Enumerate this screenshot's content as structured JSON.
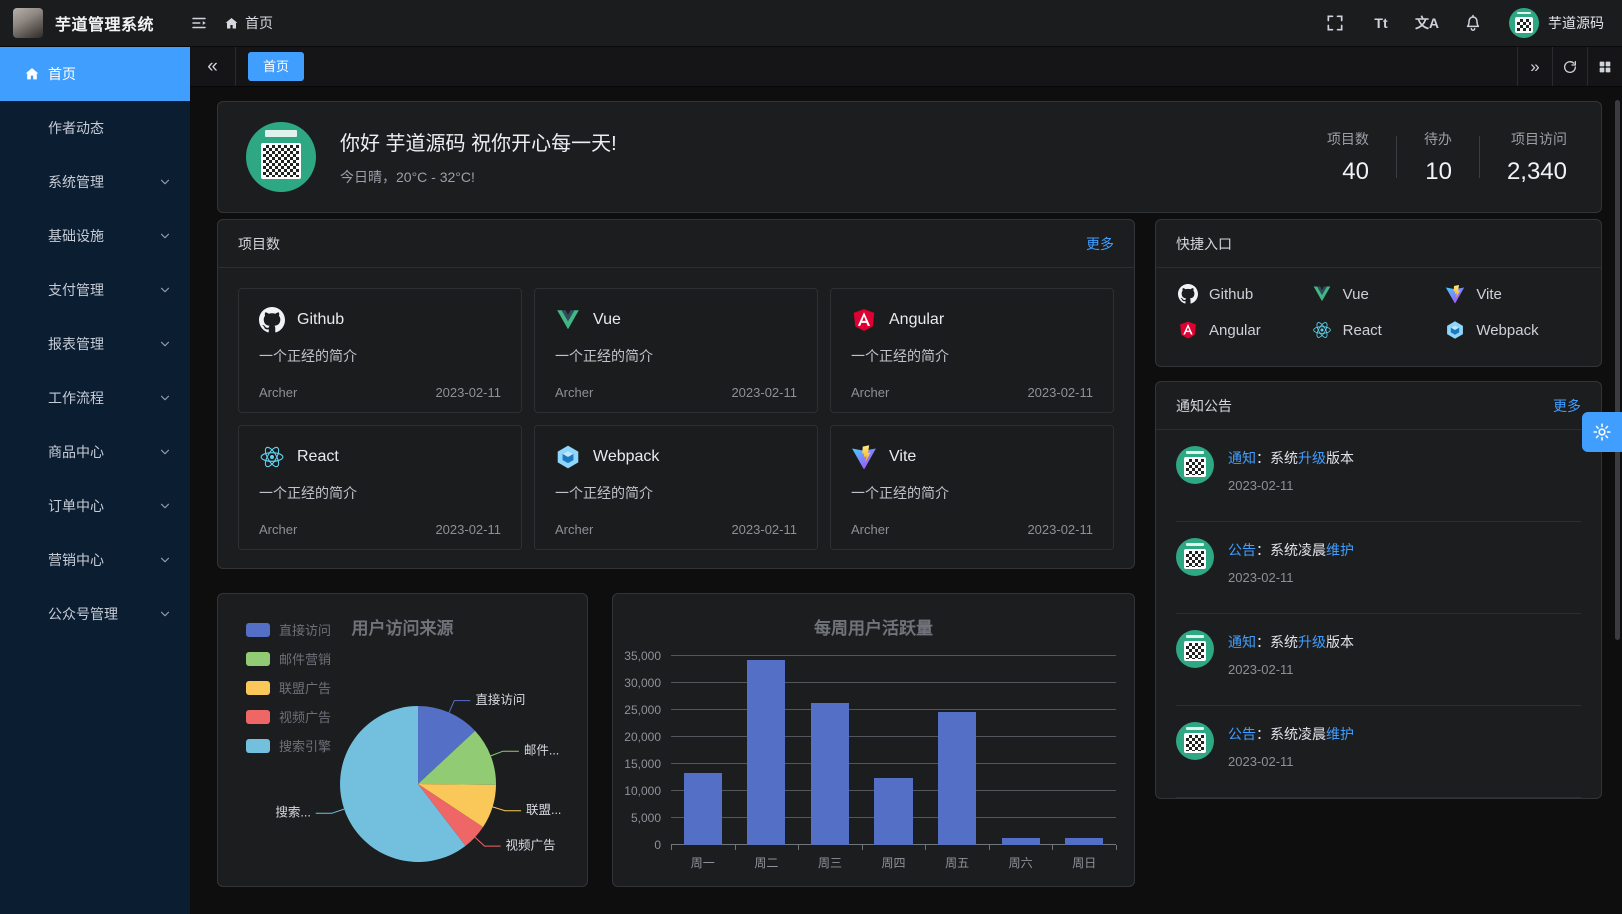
{
  "app": {
    "title": "芋道管理系统"
  },
  "navbar": {
    "breadcrumb_home": "首页",
    "username": "芋道源码",
    "font_size_glyph": "Tt",
    "language_glyph": "文A"
  },
  "sidebar": {
    "items": [
      {
        "label": "首页",
        "icon": "home-icon",
        "active": true,
        "arrow": false
      },
      {
        "label": "作者动态",
        "active": false,
        "arrow": false
      },
      {
        "label": "系统管理",
        "active": false,
        "arrow": true
      },
      {
        "label": "基础设施",
        "active": false,
        "arrow": true
      },
      {
        "label": "支付管理",
        "active": false,
        "arrow": true
      },
      {
        "label": "报表管理",
        "active": false,
        "arrow": true
      },
      {
        "label": "工作流程",
        "active": false,
        "arrow": true
      },
      {
        "label": "商品中心",
        "active": false,
        "arrow": true
      },
      {
        "label": "订单中心",
        "active": false,
        "arrow": true
      },
      {
        "label": "营销中心",
        "active": false,
        "arrow": true
      },
      {
        "label": "公众号管理",
        "active": false,
        "arrow": true
      }
    ]
  },
  "tabbar": {
    "collapse_left": "«",
    "active_tab": "首页",
    "collapse_right": "»"
  },
  "welcome": {
    "greeting": "你好 芋道源码 祝你开心每一天!",
    "weather": "今日晴，20°C - 32°C!",
    "stats": [
      {
        "label": "项目数",
        "value": "40"
      },
      {
        "label": "待办",
        "value": "10"
      },
      {
        "label": "项目访问",
        "value": "2,340"
      }
    ]
  },
  "projects": {
    "title": "项目数",
    "more_label": "更多",
    "items": [
      {
        "name": "Github",
        "icon": "github-icon",
        "desc": "一个正经的简介",
        "author": "Archer",
        "date": "2023-02-11"
      },
      {
        "name": "Vue",
        "icon": "vue-icon",
        "desc": "一个正经的简介",
        "author": "Archer",
        "date": "2023-02-11"
      },
      {
        "name": "Angular",
        "icon": "angular-icon",
        "desc": "一个正经的简介",
        "author": "Archer",
        "date": "2023-02-11"
      },
      {
        "name": "React",
        "icon": "react-icon",
        "desc": "一个正经的简介",
        "author": "Archer",
        "date": "2023-02-11"
      },
      {
        "name": "Webpack",
        "icon": "webpack-icon",
        "desc": "一个正经的简介",
        "author": "Archer",
        "date": "2023-02-11"
      },
      {
        "name": "Vite",
        "icon": "vite-icon",
        "desc": "一个正经的简介",
        "author": "Archer",
        "date": "2023-02-11"
      }
    ]
  },
  "shortcuts": {
    "title": "快捷入口",
    "items": [
      {
        "name": "Github",
        "icon": "github-icon"
      },
      {
        "name": "Vue",
        "icon": "vue-icon"
      },
      {
        "name": "Vite",
        "icon": "vite-icon"
      },
      {
        "name": "Angular",
        "icon": "angular-icon"
      },
      {
        "name": "React",
        "icon": "react-icon"
      },
      {
        "name": "Webpack",
        "icon": "webpack-icon"
      }
    ]
  },
  "notices": {
    "title": "通知公告",
    "more_label": "更多",
    "items": [
      {
        "segments": [
          {
            "text": "通知",
            "hl": true
          },
          {
            "text": "：系统",
            "hl": false
          },
          {
            "text": "升级",
            "hl": true
          },
          {
            "text": "版本",
            "hl": false
          }
        ],
        "date": "2023-02-11"
      },
      {
        "segments": [
          {
            "text": "公告",
            "hl": true
          },
          {
            "text": "：系统凌晨",
            "hl": false
          },
          {
            "text": "维护",
            "hl": true
          }
        ],
        "date": "2023-02-11"
      },
      {
        "segments": [
          {
            "text": "通知",
            "hl": true
          },
          {
            "text": "：系统",
            "hl": false
          },
          {
            "text": "升级",
            "hl": true
          },
          {
            "text": "版本",
            "hl": false
          }
        ],
        "date": "2023-02-11"
      },
      {
        "segments": [
          {
            "text": "公告",
            "hl": true
          },
          {
            "text": "：系统凌晨",
            "hl": false
          },
          {
            "text": "维护",
            "hl": true
          }
        ],
        "date": "2023-02-11"
      }
    ]
  },
  "chart_data": [
    {
      "type": "pie",
      "title": "用户访问来源",
      "legend_position": "left",
      "labels": [
        "直接访问",
        "邮件营销",
        "联盟广告",
        "视频广告",
        "搜索引擎"
      ],
      "values": [
        335,
        310,
        234,
        135,
        1548
      ],
      "colors": [
        "#5470c6",
        "#91cc75",
        "#fac858",
        "#ee6666",
        "#73c0de"
      ],
      "callout_labels": [
        "直接访问",
        "邮件...",
        "联盟...",
        "视频广告",
        "搜索..."
      ]
    },
    {
      "type": "bar",
      "title": "每周用户活跃量",
      "categories": [
        "周一",
        "周二",
        "周三",
        "周四",
        "周五",
        "周六",
        "周日"
      ],
      "values": [
        13253,
        34235,
        26321,
        12340,
        24643,
        1322,
        1324
      ],
      "ylim": [
        0,
        35000
      ],
      "ytick_step": 5000,
      "yticks": [
        "0",
        "5,000",
        "10,000",
        "15,000",
        "20,000",
        "25,000",
        "30,000",
        "35,000"
      ],
      "bar_color": "#5470c6",
      "grid": true
    }
  ],
  "colors": {
    "accent": "#409eff",
    "avatar_green": "#2ea883"
  }
}
